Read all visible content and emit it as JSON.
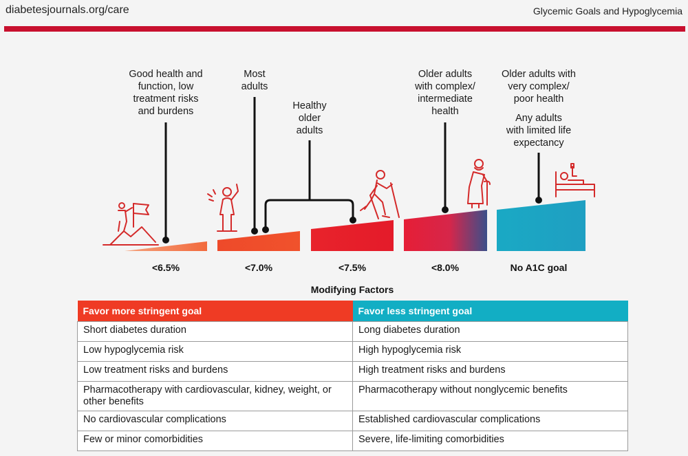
{
  "header": {
    "site": "diabetesjournals.org/care",
    "title": "Glycemic Goals and Hypoglycemia"
  },
  "diagram": {
    "labels": {
      "good_health": [
        "Good health and",
        "function, low",
        "treatment risks",
        "and burdens"
      ],
      "most_adults": [
        "Most",
        "adults"
      ],
      "healthy_older": [
        "Healthy",
        "older",
        "adults"
      ],
      "complex": [
        "Older adults",
        "with complex/",
        "intermediate",
        "health"
      ],
      "very_complex": [
        "Older adults with",
        "very complex/",
        "poor health"
      ],
      "limited_life": [
        "Any adults",
        "with limited life",
        "expectancy"
      ]
    },
    "goals": [
      "<6.5%",
      "<7.0%",
      "<7.5%",
      "<8.0%",
      "No A1C goal"
    ],
    "colors": {
      "orange": "#f26a3d",
      "red": "#e81e2c",
      "teal": "#1aa9c4",
      "line": "#111111"
    },
    "icons": [
      "hiker-flag-icon",
      "waving-person-icon",
      "hiking-poles-person-icon",
      "elderly-cane-person-icon",
      "hospital-bed-icon"
    ]
  },
  "modifying_factors": {
    "title": "Modifying Factors",
    "headers": [
      "Favor more stringent goal",
      "Favor less stringent goal"
    ],
    "rows": [
      [
        "Short diabetes duration",
        "Long diabetes duration"
      ],
      [
        "Low hypoglycemia risk",
        "High hypoglycemia risk"
      ],
      [
        "Low treatment risks and burdens",
        "High treatment risks and burdens"
      ],
      [
        "Pharmacotherapy with cardiovascular, kidney, weight, or other benefits",
        "Pharmacotherapy without nonglycemic benefits"
      ],
      [
        "No cardiovascular complications",
        "Established cardiovascular complications"
      ],
      [
        "Few or minor comorbidities",
        "Severe, life-limiting comorbidities"
      ]
    ]
  }
}
